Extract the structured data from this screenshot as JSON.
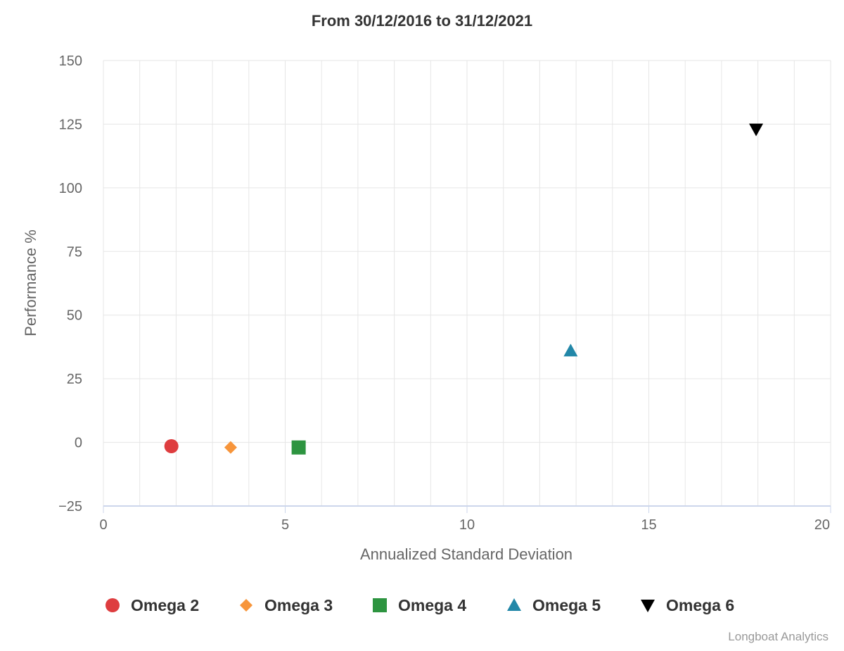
{
  "chart_data": {
    "type": "scatter",
    "title": "From 30/12/2016 to 31/12/2021",
    "xlabel": "Annualized Standard Deviation",
    "ylabel": "Performance %",
    "xlim": [
      0,
      20
    ],
    "ylim": [
      -25,
      150
    ],
    "xticks": [
      0,
      5,
      10,
      15,
      20
    ],
    "xtick_labels": [
      "0",
      "5",
      "10",
      "15",
      "20"
    ],
    "yticks": [
      -25,
      0,
      25,
      50,
      75,
      100,
      125,
      150
    ],
    "ytick_labels": [
      "−25",
      "0",
      "25",
      "50",
      "75",
      "100",
      "125",
      "150"
    ],
    "grid": true,
    "legend_position": "bottom",
    "series": [
      {
        "name": "Omega 2",
        "marker": "circle",
        "color": "#de3d3f",
        "points": [
          {
            "x": 1.87,
            "y": -1.5
          }
        ]
      },
      {
        "name": "Omega 3",
        "marker": "diamond",
        "color": "#f7953b",
        "points": [
          {
            "x": 3.5,
            "y": -2.0
          }
        ]
      },
      {
        "name": "Omega 4",
        "marker": "square",
        "color": "#2d9440",
        "points": [
          {
            "x": 5.37,
            "y": -2.0
          }
        ]
      },
      {
        "name": "Omega 5",
        "marker": "triangle",
        "color": "#2287a8",
        "points": [
          {
            "x": 12.85,
            "y": 36.0
          }
        ]
      },
      {
        "name": "Omega 6",
        "marker": "triangle-down",
        "color": "#000000",
        "points": [
          {
            "x": 17.95,
            "y": 123.0
          }
        ]
      }
    ]
  },
  "credit": "Longboat Analytics"
}
